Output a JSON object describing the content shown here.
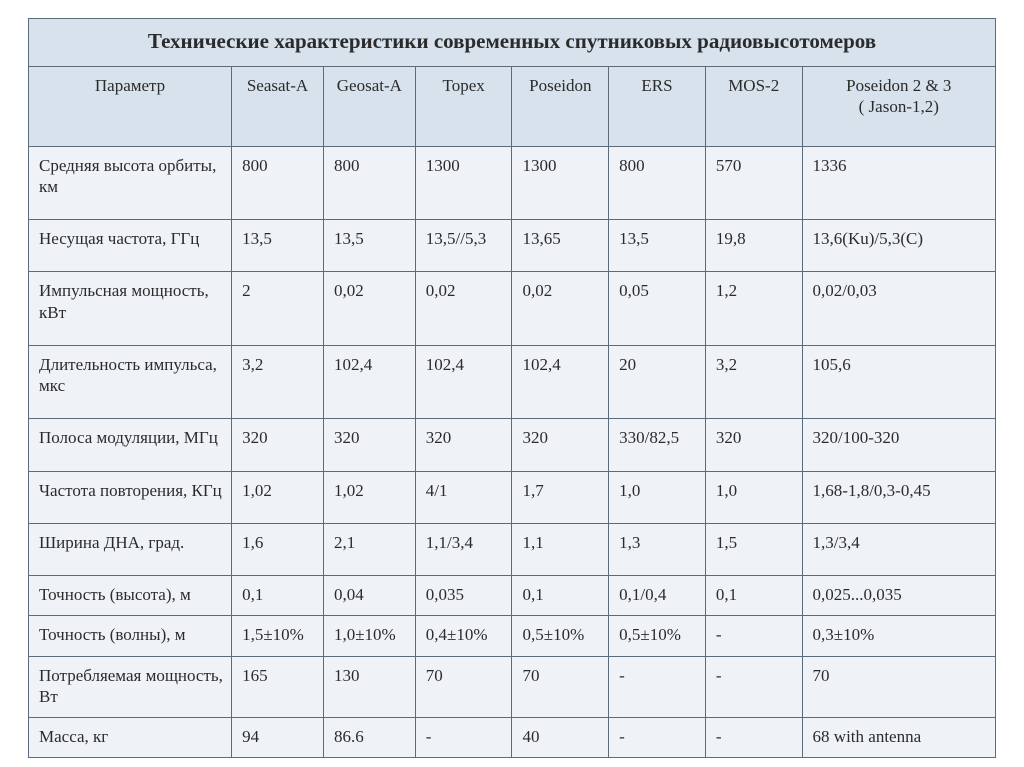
{
  "table": {
    "type": "table",
    "title": "Технические характеристики современных спутниковых радиовысотомеров",
    "background_color": "#ffffff",
    "header_bg": "#d7e2ec",
    "body_bg": "#eff3f7",
    "border_color": "#5c6b7a",
    "text_color": "#2b2b2b",
    "title_fontsize": 21,
    "header_fontsize": 17,
    "body_fontsize": 17,
    "font_family": "Times New Roman",
    "col_widths_pct": [
      21.0,
      9.5,
      9.5,
      10.0,
      10.0,
      10.0,
      10.0,
      20.0
    ],
    "columns": [
      "Параметр",
      "Seasat-A",
      "Geosat-A",
      "Topex",
      "Poseidon",
      "ERS",
      "MOS-2",
      "Poseidon 2 & 3\n( Jason-1,2)"
    ],
    "rows": [
      {
        "param": "Средняя высота орбиты, км",
        "vals": [
          "800",
          "800",
          "1300",
          "1300",
          "800",
          "570",
          "1336"
        ]
      },
      {
        "param": "Несущая частота, ГГц",
        "vals": [
          "13,5",
          "13,5",
          "13,5//5,3",
          "13,65",
          "13,5",
          "19,8",
          "13,6(Ku)/5,3(C)"
        ]
      },
      {
        "param": "Импульсная мощность, кВт",
        "vals": [
          "2",
          "0,02",
          "0,02",
          "0,02",
          "0,05",
          "1,2",
          "0,02/0,03"
        ]
      },
      {
        "param": "Длительность импульса, мкс",
        "vals": [
          "3,2",
          " 102,4",
          " 102,4",
          "102,4",
          "20",
          "3,2",
          "105,6"
        ]
      },
      {
        "param": " Полоса модуляции, МГц",
        "vals": [
          "320",
          "320",
          "320",
          "320",
          "330/82,5",
          "320",
          "320/100-320"
        ]
      },
      {
        "param": "Частота повторения, КГц",
        "vals": [
          "1,02",
          "1,02",
          "4/1",
          "1,7",
          "1,0",
          "1,0",
          "1,68-1,8/0,3-0,45"
        ]
      },
      {
        "param": "Ширина ДНА, град.",
        "vals": [
          "1,6",
          "2,1",
          "1,1/3,4",
          "1,1",
          "1,3",
          "1,5",
          "1,3/3,4"
        ]
      },
      {
        "param": "Точность (высота), м",
        "vals": [
          "0,1",
          "0,04",
          "0,035",
          "0,1",
          "0,1/0,4",
          "0,1",
          "0,025...0,035"
        ]
      },
      {
        "param": "Точность (волны), м",
        "vals": [
          "1,5±10%",
          "1,0±10%",
          "0,4±10%",
          "0,5±10%",
          "0,5±10%",
          "-",
          "0,3±10%"
        ]
      },
      {
        "param": "Потребляемая мощность, Вт",
        "vals": [
          "165",
          "130",
          "70",
          "70",
          "-",
          "-",
          "70"
        ]
      },
      {
        "param": "Масса, кг",
        "vals": [
          "94",
          "86.6",
          "-",
          "40",
          "-",
          "-",
          "68 with antenna"
        ]
      }
    ]
  }
}
